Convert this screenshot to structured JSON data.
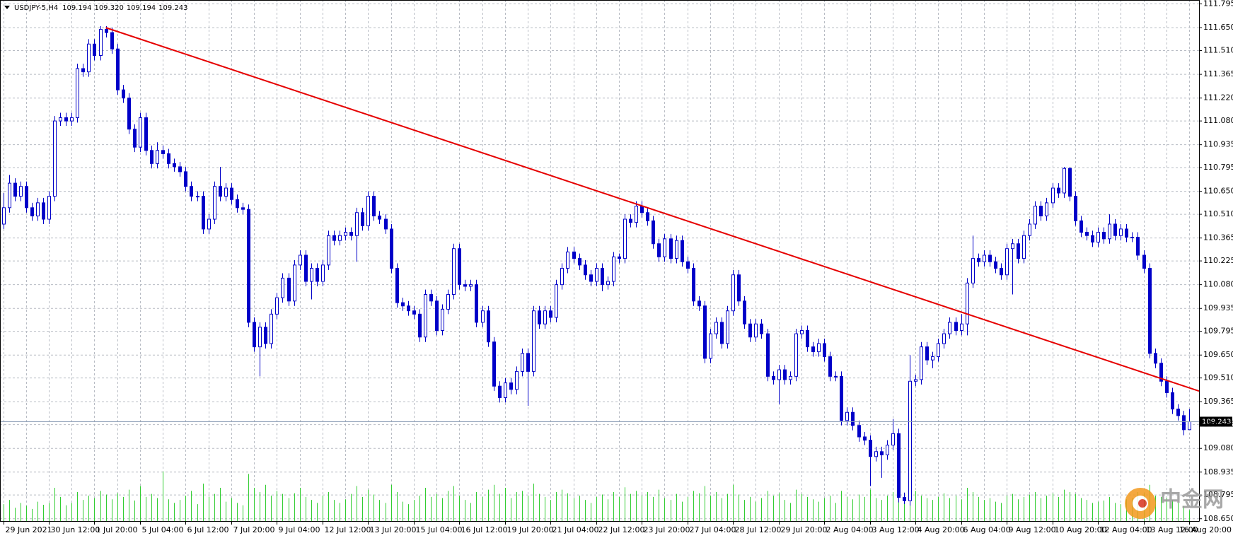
{
  "chart_data": {
    "type": "candlestick",
    "title": "USDJPY-5,H4",
    "ohlc_value_labels": [
      "109.194",
      "109.320",
      "109.194",
      "109.243"
    ],
    "watermark": "中金网",
    "categories": [
      "29 Jun 2021",
      null,
      null,
      null,
      null,
      null,
      null,
      null,
      "30 Jun 12:00",
      null,
      null,
      null,
      null,
      null,
      null,
      null,
      "1 Jul 20:00",
      null,
      null,
      null,
      null,
      null,
      null,
      null,
      "5 Jul 04:00",
      null,
      null,
      null,
      null,
      null,
      null,
      null,
      "6 Jul 12:00",
      null,
      null,
      null,
      null,
      null,
      null,
      null,
      "7 Jul 20:00",
      null,
      null,
      null,
      null,
      null,
      null,
      null,
      "9 Jul 04:00",
      null,
      null,
      null,
      null,
      null,
      null,
      null,
      "12 Jul 12:00",
      null,
      null,
      null,
      null,
      null,
      null,
      null,
      "13 Jul 20:00",
      null,
      null,
      null,
      null,
      null,
      null,
      null,
      "15 Jul 04:00",
      null,
      null,
      null,
      null,
      null,
      null,
      null,
      "16 Jul 12:00",
      null,
      null,
      null,
      null,
      null,
      null,
      null,
      "19 Jul 20:00",
      null,
      null,
      null,
      null,
      null,
      null,
      null,
      "21 Jul 04:00",
      null,
      null,
      null,
      null,
      null,
      null,
      null,
      "22 Jul 12:00",
      null,
      null,
      null,
      null,
      null,
      null,
      null,
      "23 Jul 20:00",
      null,
      null,
      null,
      null,
      null,
      null,
      null,
      "27 Jul 04:00",
      null,
      null,
      null,
      null,
      null,
      null,
      null,
      "28 Jul 12:00",
      null,
      null,
      null,
      null,
      null,
      null,
      null,
      "29 Jul 20:00",
      null,
      null,
      null,
      null,
      null,
      null,
      null,
      "2 Aug 04:00",
      null,
      null,
      null,
      null,
      null,
      null,
      null,
      "3 Aug 12:00",
      null,
      null,
      null,
      null,
      null,
      null,
      null,
      "4 Aug 20:00",
      null,
      null,
      null,
      null,
      null,
      null,
      null,
      "6 Aug 04:00",
      null,
      null,
      null,
      null,
      null,
      null,
      null,
      "9 Aug 12:00",
      null,
      null,
      null,
      null,
      null,
      null,
      null,
      "10 Aug 20:00",
      null,
      null,
      null,
      null,
      null,
      null,
      null,
      "12 Aug 04:00",
      null,
      null,
      null,
      null,
      null,
      null,
      null,
      "13 Aug 12:00",
      null,
      null,
      null,
      null,
      null,
      null,
      null,
      "16 Aug 20:00"
    ],
    "open": [
      110.45,
      110.55,
      110.7,
      110.62,
      110.68,
      110.55,
      110.5,
      110.58,
      110.48,
      110.62,
      111.08,
      111.1,
      111.08,
      111.1,
      111.4,
      111.38,
      111.55,
      111.48,
      111.64,
      111.62,
      111.52,
      111.27,
      111.22,
      111.03,
      110.92,
      111.1,
      110.9,
      110.82,
      110.9,
      110.88,
      110.82,
      110.8,
      110.77,
      110.68,
      110.62,
      110.62,
      110.42,
      110.48,
      110.68,
      110.62,
      110.67,
      110.6,
      110.55,
      110.54,
      109.85,
      109.7,
      109.82,
      109.72,
      109.9,
      110.0,
      110.12,
      109.98,
      110.2,
      110.26,
      110.1,
      110.18,
      110.1,
      110.2,
      110.38,
      110.35,
      110.38,
      110.4,
      110.38,
      110.52,
      110.44,
      110.62,
      110.5,
      110.48,
      110.42,
      110.18,
      109.97,
      109.95,
      109.92,
      109.9,
      109.76,
      110.02,
      109.98,
      109.8,
      109.93,
      110.02,
      110.3,
      110.08,
      110.07,
      110.08,
      109.85,
      109.92,
      109.73,
      109.46,
      109.39,
      109.48,
      109.44,
      109.55,
      109.66,
      109.55,
      109.92,
      109.84,
      109.92,
      109.88,
      110.08,
      110.18,
      110.28,
      110.24,
      110.2,
      110.14,
      110.1,
      110.18,
      110.08,
      110.1,
      110.25,
      110.24,
      110.48,
      110.46,
      110.56,
      110.52,
      110.47,
      110.33,
      110.25,
      110.36,
      110.24,
      110.35,
      110.22,
      110.18,
      109.98,
      109.95,
      109.63,
      109.78,
      109.85,
      109.72,
      109.92,
      110.14,
      109.98,
      109.84,
      109.76,
      109.84,
      109.78,
      109.52,
      109.5,
      109.56,
      109.5,
      109.52,
      109.78,
      109.8,
      109.7,
      109.67,
      109.72,
      109.64,
      109.52,
      109.52,
      109.25,
      109.3,
      109.22,
      109.15,
      109.13,
      109.03,
      109.06,
      109.04,
      109.1,
      109.17,
      108.78,
      108.76,
      109.49,
      109.5,
      109.7,
      109.62,
      109.64,
      109.72,
      109.78,
      109.85,
      109.8,
      109.84,
      110.09,
      110.24,
      110.22,
      110.26,
      110.22,
      110.18,
      110.14,
      110.3,
      110.33,
      110.24,
      110.38,
      110.45,
      110.56,
      110.5,
      110.58,
      110.67,
      110.64,
      110.79,
      110.62,
      110.47,
      110.4,
      110.38,
      110.34,
      110.4,
      110.36,
      110.45,
      110.38,
      110.42,
      110.37,
      110.37,
      110.26,
      110.18,
      109.66,
      109.6,
      109.49,
      109.42,
      109.32,
      109.28,
      109.194
    ],
    "high": [
      110.64,
      110.75,
      110.73,
      110.71,
      110.71,
      110.58,
      110.61,
      110.61,
      110.65,
      111.11,
      111.13,
      111.13,
      111.13,
      111.43,
      111.43,
      111.58,
      111.58,
      111.66,
      111.66,
      111.65,
      111.55,
      111.3,
      111.25,
      111.06,
      111.13,
      111.13,
      110.93,
      110.95,
      110.93,
      110.91,
      110.85,
      110.83,
      110.8,
      110.71,
      110.65,
      110.65,
      110.51,
      110.71,
      110.8,
      110.7,
      110.7,
      110.63,
      110.58,
      110.57,
      109.88,
      109.85,
      109.85,
      109.93,
      110.03,
      110.15,
      110.15,
      110.23,
      110.29,
      110.29,
      110.21,
      110.21,
      110.23,
      110.41,
      110.41,
      110.41,
      110.43,
      110.43,
      110.55,
      110.55,
      110.65,
      110.65,
      110.53,
      110.51,
      110.45,
      110.21,
      110.0,
      109.98,
      109.95,
      109.93,
      110.05,
      110.05,
      110.01,
      109.96,
      110.05,
      110.33,
      110.33,
      110.11,
      110.11,
      110.11,
      109.95,
      109.95,
      109.76,
      109.49,
      109.51,
      109.51,
      109.58,
      109.69,
      109.69,
      109.95,
      109.95,
      109.95,
      109.95,
      110.11,
      110.21,
      110.31,
      110.31,
      110.27,
      110.23,
      110.17,
      110.21,
      110.21,
      110.13,
      110.28,
      110.27,
      110.51,
      110.51,
      110.59,
      110.59,
      110.55,
      110.5,
      110.36,
      110.39,
      110.39,
      110.38,
      110.38,
      110.25,
      110.21,
      110.01,
      109.98,
      109.81,
      109.88,
      109.88,
      109.95,
      110.17,
      110.17,
      110.01,
      109.87,
      109.87,
      109.87,
      109.81,
      109.55,
      109.59,
      109.59,
      109.55,
      109.81,
      109.83,
      109.83,
      109.73,
      109.75,
      109.75,
      109.67,
      109.55,
      109.55,
      109.33,
      109.33,
      109.25,
      109.18,
      109.16,
      109.09,
      109.09,
      109.13,
      109.26,
      109.2,
      108.81,
      109.65,
      109.53,
      109.73,
      109.73,
      109.67,
      109.75,
      109.81,
      109.88,
      109.88,
      109.9,
      110.12,
      110.38,
      110.27,
      110.29,
      110.29,
      110.25,
      110.21,
      110.33,
      110.36,
      110.36,
      110.41,
      110.48,
      110.59,
      110.59,
      110.61,
      110.7,
      110.7,
      110.8,
      110.8,
      110.65,
      110.5,
      110.43,
      110.41,
      110.43,
      110.43,
      110.51,
      110.48,
      110.45,
      110.45,
      110.4,
      110.4,
      110.29,
      110.21,
      109.69,
      109.63,
      109.52,
      109.45,
      109.35,
      109.31,
      109.32
    ],
    "low": [
      110.42,
      110.52,
      110.59,
      110.59,
      110.52,
      110.47,
      110.47,
      110.45,
      110.45,
      110.59,
      111.05,
      111.05,
      111.05,
      111.07,
      111.35,
      111.35,
      111.45,
      111.45,
      111.59,
      111.49,
      111.24,
      111.19,
      111.0,
      110.89,
      110.89,
      110.87,
      110.79,
      110.79,
      110.85,
      110.79,
      110.77,
      110.74,
      110.65,
      110.59,
      110.59,
      110.39,
      110.39,
      110.45,
      110.59,
      110.59,
      110.57,
      110.52,
      110.51,
      109.82,
      109.67,
      109.52,
      109.69,
      109.69,
      109.87,
      109.97,
      109.95,
      109.95,
      110.17,
      110.07,
      109.99,
      110.07,
      110.07,
      110.17,
      110.32,
      110.32,
      110.35,
      110.35,
      110.22,
      110.41,
      110.41,
      110.47,
      110.45,
      110.39,
      110.15,
      109.94,
      109.92,
      109.89,
      109.87,
      109.73,
      109.73,
      109.95,
      109.77,
      109.77,
      109.9,
      109.99,
      110.05,
      110.04,
      110.04,
      109.82,
      109.82,
      109.7,
      109.43,
      109.36,
      109.36,
      109.41,
      109.41,
      109.52,
      109.34,
      109.52,
      109.81,
      109.81,
      109.85,
      109.85,
      110.05,
      110.15,
      110.21,
      110.17,
      110.11,
      110.07,
      110.07,
      110.04,
      110.05,
      110.07,
      110.21,
      110.21,
      110.43,
      110.43,
      110.49,
      110.44,
      110.3,
      110.22,
      110.22,
      110.21,
      110.21,
      110.19,
      110.15,
      109.95,
      109.92,
      109.6,
      109.6,
      109.75,
      109.69,
      109.69,
      109.89,
      109.95,
      109.81,
      109.73,
      109.73,
      109.75,
      109.49,
      109.47,
      109.35,
      109.47,
      109.47,
      109.49,
      109.75,
      109.67,
      109.64,
      109.64,
      109.61,
      109.49,
      109.49,
      109.22,
      109.22,
      109.19,
      109.12,
      109.1,
      108.85,
      109.0,
      108.9,
      109.01,
      109.07,
      108.75,
      108.74,
      108.73,
      109.46,
      109.47,
      109.59,
      109.57,
      109.61,
      109.69,
      109.75,
      109.77,
      109.77,
      109.77,
      110.06,
      110.19,
      110.19,
      110.19,
      110.15,
      110.11,
      110.11,
      110.02,
      110.21,
      110.21,
      110.35,
      110.42,
      110.47,
      110.47,
      110.55,
      110.61,
      110.61,
      110.59,
      110.44,
      110.37,
      110.35,
      110.31,
      110.31,
      110.33,
      110.33,
      110.35,
      110.35,
      110.34,
      110.34,
      110.23,
      110.15,
      109.63,
      109.57,
      109.46,
      109.39,
      109.29,
      109.25,
      109.16,
      109.194
    ],
    "close": [
      110.55,
      110.7,
      110.62,
      110.68,
      110.55,
      110.5,
      110.58,
      110.48,
      110.62,
      111.08,
      111.1,
      111.08,
      111.1,
      111.4,
      111.38,
      111.55,
      111.48,
      111.64,
      111.62,
      111.52,
      111.27,
      111.22,
      111.03,
      110.92,
      111.1,
      110.9,
      110.82,
      110.9,
      110.88,
      110.82,
      110.8,
      110.77,
      110.68,
      110.62,
      110.62,
      110.42,
      110.48,
      110.68,
      110.62,
      110.67,
      110.6,
      110.55,
      110.54,
      109.85,
      109.7,
      109.82,
      109.72,
      109.9,
      110.0,
      110.12,
      109.98,
      110.2,
      110.26,
      110.1,
      110.18,
      110.1,
      110.2,
      110.38,
      110.35,
      110.38,
      110.4,
      110.38,
      110.52,
      110.44,
      110.62,
      110.5,
      110.48,
      110.42,
      110.18,
      109.97,
      109.95,
      109.92,
      109.9,
      109.76,
      110.02,
      109.98,
      109.8,
      109.93,
      110.02,
      110.3,
      110.08,
      110.07,
      110.08,
      109.85,
      109.92,
      109.73,
      109.46,
      109.39,
      109.48,
      109.44,
      109.55,
      109.66,
      109.55,
      109.92,
      109.84,
      109.92,
      109.88,
      110.08,
      110.18,
      110.28,
      110.24,
      110.2,
      110.14,
      110.1,
      110.18,
      110.08,
      110.1,
      110.25,
      110.24,
      110.48,
      110.46,
      110.56,
      110.52,
      110.47,
      110.33,
      110.25,
      110.36,
      110.24,
      110.35,
      110.22,
      110.18,
      109.98,
      109.95,
      109.63,
      109.78,
      109.85,
      109.72,
      109.92,
      110.14,
      109.98,
      109.84,
      109.76,
      109.84,
      109.78,
      109.52,
      109.5,
      109.56,
      109.5,
      109.52,
      109.78,
      109.8,
      109.7,
      109.67,
      109.72,
      109.64,
      109.52,
      109.52,
      109.25,
      109.3,
      109.22,
      109.15,
      109.13,
      109.03,
      109.06,
      109.04,
      109.1,
      109.17,
      108.78,
      108.76,
      109.49,
      109.5,
      109.7,
      109.62,
      109.64,
      109.72,
      109.78,
      109.85,
      109.8,
      109.84,
      110.09,
      110.24,
      110.22,
      110.26,
      110.22,
      110.18,
      110.14,
      110.3,
      110.33,
      110.24,
      110.38,
      110.45,
      110.56,
      110.5,
      110.58,
      110.67,
      110.64,
      110.79,
      110.62,
      110.47,
      110.4,
      110.38,
      110.34,
      110.4,
      110.36,
      110.45,
      110.38,
      110.42,
      110.37,
      110.37,
      110.26,
      110.18,
      109.66,
      109.6,
      109.49,
      109.42,
      109.32,
      109.28,
      109.194,
      109.243
    ],
    "volume": [
      28,
      35,
      22,
      30,
      25,
      20,
      32,
      27,
      30,
      55,
      40,
      26,
      30,
      48,
      35,
      42,
      38,
      50,
      44,
      36,
      46,
      40,
      52,
      34,
      58,
      40,
      45,
      38,
      82,
      36,
      30,
      35,
      42,
      50,
      28,
      62,
      40,
      45,
      55,
      32,
      38,
      30,
      26,
      78,
      55,
      48,
      60,
      42,
      50,
      45,
      38,
      46,
      55,
      40,
      35,
      30,
      42,
      48,
      35,
      30,
      36,
      45,
      58,
      40,
      52,
      44,
      35,
      30,
      60,
      48,
      32,
      28,
      35,
      42,
      55,
      40,
      45,
      38,
      50,
      58,
      42,
      35,
      30,
      48,
      40,
      52,
      60,
      45,
      55,
      38,
      48,
      50,
      42,
      62,
      45,
      40,
      35,
      48,
      52,
      46,
      38,
      42,
      35,
      30,
      40,
      44,
      36,
      48,
      40,
      56,
      45,
      50,
      42,
      48,
      40,
      52,
      38,
      35,
      45,
      32,
      40,
      50,
      46,
      58,
      42,
      48,
      38,
      45,
      60,
      44,
      35,
      40,
      32,
      38,
      50,
      42,
      46,
      35,
      30,
      52,
      45,
      40,
      36,
      32,
      38,
      42,
      30,
      50,
      40,
      36,
      44,
      40,
      52,
      38,
      35,
      42,
      48,
      55,
      45,
      72,
      50,
      42,
      38,
      35,
      40,
      46,
      38,
      42,
      36,
      55,
      48,
      40,
      35,
      38,
      32,
      30,
      42,
      45,
      36,
      40,
      44,
      48,
      38,
      42,
      46,
      40,
      52,
      48,
      45,
      38,
      35,
      30,
      32,
      34,
      40,
      30,
      28,
      36,
      38,
      48,
      46,
      60,
      42,
      40,
      38,
      35,
      30,
      25,
      18
    ],
    "candle_color": "#0000c8",
    "volume_color": "#32cd32",
    "trendline": {
      "color": "#e60000",
      "x": [
        18,
        208
      ],
      "y": [
        111.65,
        109.45
      ]
    },
    "ylim": [
      108.636,
      111.819
    ],
    "yticks": [
      {
        "value": 108.65,
        "label": "108.650"
      },
      {
        "value": 108.795,
        "label": "108.795"
      },
      {
        "value": 108.935,
        "label": "108.935"
      },
      {
        "value": 109.08,
        "label": "109.080"
      },
      {
        "value": 109.225,
        "label": "109.225"
      },
      {
        "value": 109.365,
        "label": "109.365"
      },
      {
        "value": 109.51,
        "label": "109.510"
      },
      {
        "value": 109.65,
        "label": "109.650"
      },
      {
        "value": 109.795,
        "label": "109.795"
      },
      {
        "value": 109.935,
        "label": "109.935"
      },
      {
        "value": 110.08,
        "label": "110.080"
      },
      {
        "value": 110.225,
        "label": "110.225"
      },
      {
        "value": 110.365,
        "label": "110.365"
      },
      {
        "value": 110.51,
        "label": "110.510"
      },
      {
        "value": 110.65,
        "label": "110.650"
      },
      {
        "value": 110.795,
        "label": "110.795"
      },
      {
        "value": 110.935,
        "label": "110.935"
      },
      {
        "value": 111.08,
        "label": "111.080"
      },
      {
        "value": 111.22,
        "label": "111.220"
      },
      {
        "value": 111.365,
        "label": "111.365"
      },
      {
        "value": 111.51,
        "label": "111.510"
      },
      {
        "value": 111.65,
        "label": "111.650"
      },
      {
        "value": 111.795,
        "label": "111.795"
      }
    ],
    "grid": true
  }
}
